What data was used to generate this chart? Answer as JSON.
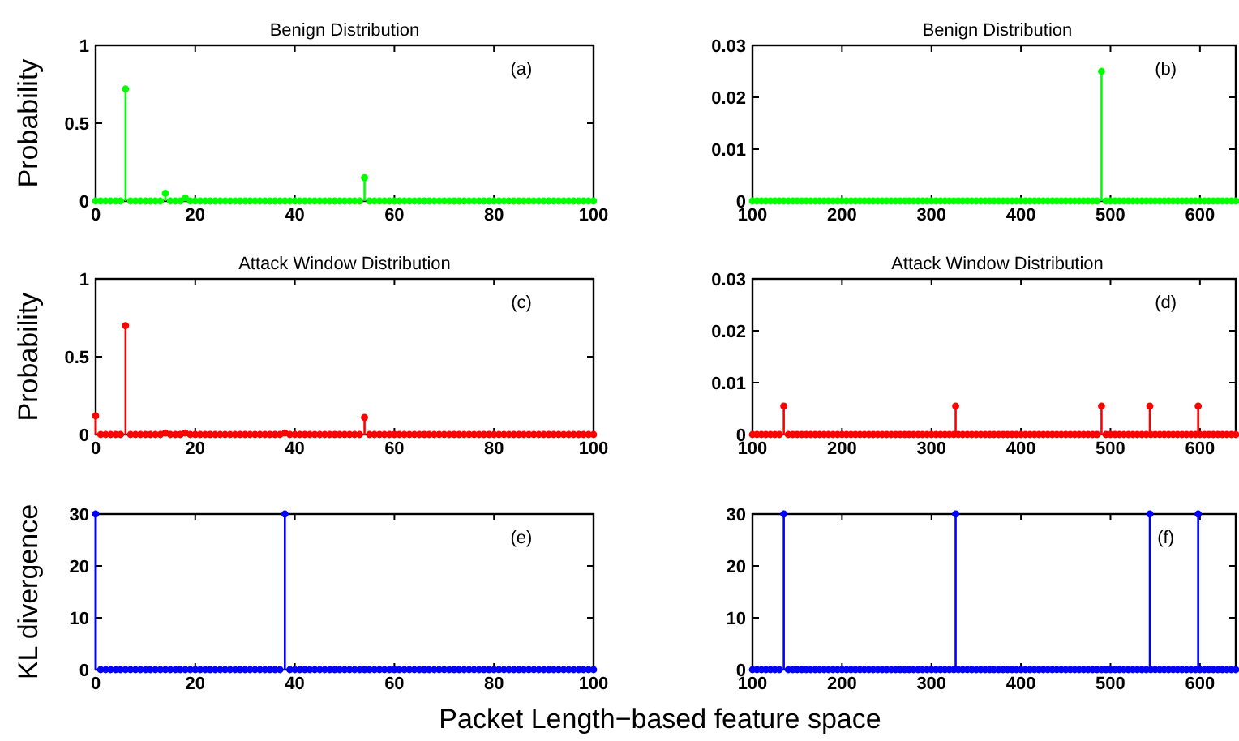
{
  "chart_data": [
    {
      "type": "lollipop",
      "title": "Benign Distribution",
      "ylabel": "Probability",
      "annotations": [
        "(a)"
      ],
      "marker": "circle",
      "xlim": [
        0,
        100
      ],
      "xticks": [
        0,
        20,
        40,
        60,
        80,
        100
      ],
      "ylim": [
        0,
        1
      ],
      "yticks": [
        0,
        0.5,
        1
      ],
      "series": [
        {
          "color": "#00ff00",
          "x": [
            0,
            1,
            2,
            3,
            4,
            5,
            6,
            7,
            8,
            9,
            10,
            11,
            12,
            13,
            14,
            15,
            16,
            17,
            18,
            19,
            20,
            21,
            22,
            23,
            24,
            25,
            26,
            27,
            28,
            29,
            30,
            31,
            32,
            33,
            34,
            35,
            36,
            37,
            38,
            39,
            40,
            41,
            42,
            43,
            44,
            45,
            46,
            47,
            48,
            49,
            50,
            51,
            52,
            53,
            54,
            55,
            56,
            57,
            58,
            59,
            60,
            61,
            62,
            63,
            64,
            65,
            66,
            67,
            68,
            69,
            70,
            71,
            72,
            73,
            74,
            75,
            76,
            77,
            78,
            79,
            80,
            81,
            82,
            83,
            84,
            85,
            86,
            87,
            88,
            89,
            90,
            91,
            92,
            93,
            94,
            95,
            96,
            97,
            98,
            99,
            100
          ],
          "values": [
            0,
            0,
            0,
            0,
            0,
            0,
            0.72,
            0,
            0,
            0,
            0,
            0,
            0,
            0,
            0.05,
            0,
            0,
            0,
            0.02,
            0,
            0,
            0,
            0,
            0,
            0,
            0,
            0,
            0,
            0,
            0,
            0,
            0,
            0,
            0,
            0,
            0,
            0,
            0,
            0,
            0,
            0,
            0,
            0,
            0,
            0,
            0,
            0,
            0,
            0,
            0,
            0,
            0,
            0,
            0,
            0.15,
            0,
            0,
            0,
            0,
            0,
            0,
            0,
            0,
            0,
            0,
            0,
            0,
            0,
            0,
            0,
            0,
            0,
            0,
            0,
            0,
            0,
            0,
            0,
            0,
            0,
            0,
            0,
            0,
            0,
            0,
            0,
            0,
            0,
            0,
            0,
            0,
            0,
            0,
            0,
            0,
            0,
            0,
            0,
            0,
            0,
            0
          ]
        }
      ]
    },
    {
      "type": "lollipop",
      "title": "Benign Distribution",
      "annotations": [
        "(b)"
      ],
      "marker": "circle",
      "xlim": [
        100,
        640
      ],
      "xticks": [
        100,
        200,
        300,
        400,
        500,
        600
      ],
      "ylim": [
        0,
        0.03
      ],
      "yticks": [
        0,
        0.01,
        0.02,
        0.03
      ],
      "series": [
        {
          "color": "#00ff00",
          "x": [
            490
          ],
          "values": [
            0.025
          ]
        },
        {
          "color": "#00ff00",
          "x": [
            100,
            105,
            110,
            115,
            120,
            125,
            130,
            135,
            140,
            145,
            150,
            155,
            160,
            165,
            170,
            175,
            180,
            185,
            190,
            195,
            200,
            205,
            210,
            215,
            220,
            225,
            230,
            235,
            240,
            245,
            250,
            255,
            260,
            265,
            270,
            275,
            280,
            285,
            290,
            295,
            300,
            305,
            310,
            315,
            320,
            325,
            330,
            335,
            340,
            345,
            350,
            355,
            360,
            365,
            370,
            375,
            380,
            385,
            390,
            395,
            400,
            405,
            410,
            415,
            420,
            425,
            430,
            435,
            440,
            445,
            450,
            455,
            460,
            465,
            470,
            475,
            480,
            485,
            495,
            500,
            505,
            510,
            515,
            520,
            525,
            530,
            535,
            540,
            545,
            550,
            555,
            560,
            565,
            570,
            575,
            580,
            585,
            590,
            595,
            600,
            605,
            610,
            615,
            620,
            625,
            630,
            635,
            640
          ],
          "values": [
            0,
            0,
            0,
            0,
            0,
            0,
            0,
            0,
            0,
            0,
            0,
            0,
            0,
            0,
            0,
            0,
            0,
            0,
            0,
            0,
            0,
            0,
            0,
            0,
            0,
            0,
            0,
            0,
            0,
            0,
            0,
            0,
            0,
            0,
            0,
            0,
            0,
            0,
            0,
            0,
            0,
            0,
            0,
            0,
            0,
            0,
            0,
            0,
            0,
            0,
            0,
            0,
            0,
            0,
            0,
            0,
            0,
            0,
            0,
            0,
            0,
            0,
            0,
            0,
            0,
            0,
            0,
            0,
            0,
            0,
            0,
            0,
            0,
            0,
            0,
            0,
            0,
            0,
            0,
            0,
            0,
            0,
            0,
            0,
            0,
            0,
            0,
            0,
            0,
            0,
            0,
            0,
            0,
            0,
            0,
            0,
            0,
            0,
            0,
            0,
            0,
            0,
            0,
            0,
            0,
            0,
            0,
            0
          ]
        }
      ]
    },
    {
      "type": "lollipop",
      "title": "Attack Window Distribution",
      "ylabel": "Probability",
      "annotations": [
        "(c)"
      ],
      "marker": "circle",
      "xlim": [
        0,
        100
      ],
      "xticks": [
        0,
        20,
        40,
        60,
        80,
        100
      ],
      "ylim": [
        0,
        1
      ],
      "yticks": [
        0,
        0.5,
        1
      ],
      "series": [
        {
          "color": "#ff0000",
          "x": [
            0,
            1,
            2,
            3,
            4,
            5,
            6,
            7,
            8,
            9,
            10,
            11,
            12,
            13,
            14,
            15,
            16,
            17,
            18,
            19,
            20,
            21,
            22,
            23,
            24,
            25,
            26,
            27,
            28,
            29,
            30,
            31,
            32,
            33,
            34,
            35,
            36,
            37,
            38,
            39,
            40,
            41,
            42,
            43,
            44,
            45,
            46,
            47,
            48,
            49,
            50,
            51,
            52,
            53,
            54,
            55,
            56,
            57,
            58,
            59,
            60,
            61,
            62,
            63,
            64,
            65,
            66,
            67,
            68,
            69,
            70,
            71,
            72,
            73,
            74,
            75,
            76,
            77,
            78,
            79,
            80,
            81,
            82,
            83,
            84,
            85,
            86,
            87,
            88,
            89,
            90,
            91,
            92,
            93,
            94,
            95,
            96,
            97,
            98,
            99,
            100
          ],
          "values": [
            0.12,
            0,
            0,
            0,
            0,
            0,
            0.7,
            0,
            0,
            0,
            0,
            0,
            0,
            0,
            0.01,
            0,
            0,
            0,
            0.01,
            0,
            0,
            0,
            0,
            0,
            0,
            0,
            0,
            0,
            0,
            0,
            0,
            0,
            0,
            0,
            0,
            0,
            0,
            0,
            0.01,
            0,
            0,
            0,
            0,
            0,
            0,
            0,
            0,
            0,
            0,
            0,
            0,
            0,
            0,
            0,
            0.11,
            0,
            0,
            0,
            0,
            0,
            0,
            0,
            0,
            0,
            0,
            0,
            0,
            0,
            0,
            0,
            0,
            0,
            0,
            0,
            0,
            0,
            0,
            0,
            0,
            0,
            0,
            0,
            0,
            0,
            0,
            0,
            0,
            0,
            0,
            0,
            0,
            0,
            0,
            0,
            0,
            0,
            0,
            0,
            0,
            0,
            0
          ]
        }
      ]
    },
    {
      "type": "lollipop",
      "title": "Attack Window Distribution",
      "annotations": [
        "(d)"
      ],
      "marker": "circle",
      "xlim": [
        100,
        640
      ],
      "xticks": [
        100,
        200,
        300,
        400,
        500,
        600
      ],
      "ylim": [
        0,
        0.03
      ],
      "yticks": [
        0,
        0.01,
        0.02,
        0.03
      ],
      "series": [
        {
          "color": "#ff0000",
          "x": [
            135,
            327,
            490,
            544,
            598
          ],
          "values": [
            0.0055,
            0.0055,
            0.0055,
            0.0055,
            0.0055
          ]
        },
        {
          "color": "#ff0000",
          "x": [
            100,
            105,
            110,
            115,
            120,
            125,
            130,
            140,
            145,
            150,
            155,
            160,
            165,
            170,
            175,
            180,
            185,
            190,
            195,
            200,
            205,
            210,
            215,
            220,
            225,
            230,
            235,
            240,
            245,
            250,
            255,
            260,
            265,
            270,
            275,
            280,
            285,
            290,
            295,
            300,
            305,
            310,
            315,
            320,
            325,
            330,
            335,
            340,
            345,
            350,
            355,
            360,
            365,
            370,
            375,
            380,
            385,
            390,
            395,
            400,
            405,
            410,
            415,
            420,
            425,
            430,
            435,
            440,
            445,
            450,
            455,
            460,
            465,
            470,
            475,
            480,
            485,
            495,
            500,
            505,
            510,
            515,
            520,
            525,
            530,
            535,
            540,
            545,
            550,
            555,
            560,
            565,
            570,
            575,
            580,
            585,
            590,
            595,
            600,
            605,
            610,
            615,
            620,
            625,
            630,
            635,
            640
          ],
          "values": [
            0,
            0,
            0,
            0,
            0,
            0,
            0,
            0,
            0,
            0,
            0,
            0,
            0,
            0,
            0,
            0,
            0,
            0,
            0,
            0,
            0,
            0,
            0,
            0,
            0,
            0,
            0,
            0,
            0,
            0,
            0,
            0,
            0,
            0,
            0,
            0,
            0,
            0,
            0,
            0,
            0,
            0,
            0,
            0,
            0,
            0,
            0,
            0,
            0,
            0,
            0,
            0,
            0,
            0,
            0,
            0,
            0,
            0,
            0,
            0,
            0,
            0,
            0,
            0,
            0,
            0,
            0,
            0,
            0,
            0,
            0,
            0,
            0,
            0,
            0,
            0,
            0,
            0,
            0,
            0,
            0,
            0,
            0,
            0,
            0,
            0,
            0,
            0,
            0,
            0,
            0,
            0,
            0,
            0,
            0,
            0,
            0,
            0,
            0,
            0,
            0,
            0,
            0,
            0,
            0,
            0,
            0
          ]
        }
      ]
    },
    {
      "type": "lollipop",
      "ylabel": "KL divergence",
      "xlabel": "Packet Length−based feature space",
      "annotations": [
        "(e)"
      ],
      "marker": "circle",
      "xlim": [
        0,
        100
      ],
      "xticks": [
        0,
        20,
        40,
        60,
        80,
        100
      ],
      "ylim": [
        0,
        30
      ],
      "yticks": [
        0,
        10,
        20,
        30
      ],
      "series": [
        {
          "color": "#0000ff",
          "x": [
            0,
            1,
            2,
            3,
            4,
            5,
            6,
            7,
            8,
            9,
            10,
            11,
            12,
            13,
            14,
            15,
            16,
            17,
            18,
            19,
            20,
            21,
            22,
            23,
            24,
            25,
            26,
            27,
            28,
            29,
            30,
            31,
            32,
            33,
            34,
            35,
            36,
            37,
            38,
            39,
            40,
            41,
            42,
            43,
            44,
            45,
            46,
            47,
            48,
            49,
            50,
            51,
            52,
            53,
            54,
            55,
            56,
            57,
            58,
            59,
            60,
            61,
            62,
            63,
            64,
            65,
            66,
            67,
            68,
            69,
            70,
            71,
            72,
            73,
            74,
            75,
            76,
            77,
            78,
            79,
            80,
            81,
            82,
            83,
            84,
            85,
            86,
            87,
            88,
            89,
            90,
            91,
            92,
            93,
            94,
            95,
            96,
            97,
            98,
            99,
            100
          ],
          "values": [
            30,
            0,
            0,
            0,
            0,
            0,
            0,
            0,
            0,
            0,
            0,
            0,
            0,
            0,
            0,
            0,
            0,
            0,
            0,
            0,
            0,
            0,
            0,
            0,
            0,
            0,
            0,
            0,
            0,
            0,
            0,
            0,
            0,
            0,
            0,
            0,
            0,
            0,
            30,
            0,
            0,
            0,
            0,
            0,
            0,
            0,
            0,
            0,
            0,
            0,
            0,
            0,
            0,
            0,
            0,
            0,
            0,
            0,
            0,
            0,
            0,
            0,
            0,
            0,
            0,
            0,
            0,
            0,
            0,
            0,
            0,
            0,
            0,
            0,
            0,
            0,
            0,
            0,
            0,
            0,
            0,
            0,
            0,
            0,
            0,
            0,
            0,
            0,
            0,
            0,
            0,
            0,
            0,
            0,
            0,
            0,
            0,
            0,
            0,
            0,
            0
          ]
        }
      ]
    },
    {
      "type": "lollipop",
      "annotations": [
        "(f)"
      ],
      "marker": "circle",
      "xlim": [
        100,
        640
      ],
      "xticks": [
        100,
        200,
        300,
        400,
        500,
        600
      ],
      "ylim": [
        0,
        30
      ],
      "yticks": [
        0,
        10,
        20,
        30
      ],
      "series": [
        {
          "color": "#0000ff",
          "x": [
            135,
            327,
            544,
            598
          ],
          "values": [
            30,
            30,
            30,
            30
          ]
        },
        {
          "color": "#0000ff",
          "x": [
            100,
            105,
            110,
            115,
            120,
            125,
            130,
            140,
            145,
            150,
            155,
            160,
            165,
            170,
            175,
            180,
            185,
            190,
            195,
            200,
            205,
            210,
            215,
            220,
            225,
            230,
            235,
            240,
            245,
            250,
            255,
            260,
            265,
            270,
            275,
            280,
            285,
            290,
            295,
            300,
            305,
            310,
            315,
            320,
            325,
            330,
            335,
            340,
            345,
            350,
            355,
            360,
            365,
            370,
            375,
            380,
            385,
            390,
            395,
            400,
            405,
            410,
            415,
            420,
            425,
            430,
            435,
            440,
            445,
            450,
            455,
            460,
            465,
            470,
            475,
            480,
            485,
            490,
            495,
            500,
            505,
            510,
            515,
            520,
            525,
            530,
            535,
            540,
            545,
            550,
            555,
            560,
            565,
            570,
            575,
            580,
            585,
            590,
            595,
            600,
            605,
            610,
            615,
            620,
            625,
            630,
            635,
            640
          ],
          "values": [
            0,
            0,
            0,
            0,
            0,
            0,
            0,
            0,
            0,
            0,
            0,
            0,
            0,
            0,
            0,
            0,
            0,
            0,
            0,
            0,
            0,
            0,
            0,
            0,
            0,
            0,
            0,
            0,
            0,
            0,
            0,
            0,
            0,
            0,
            0,
            0,
            0,
            0,
            0,
            0,
            0,
            0,
            0,
            0,
            0,
            0,
            0,
            0,
            0,
            0,
            0,
            0,
            0,
            0,
            0,
            0,
            0,
            0,
            0,
            0,
            0,
            0,
            0,
            0,
            0,
            0,
            0,
            0,
            0,
            0,
            0,
            0,
            0,
            0,
            0,
            0,
            0,
            0,
            0,
            0,
            0,
            0,
            0,
            0,
            0,
            0,
            0,
            0,
            0,
            0,
            0,
            0,
            0,
            0,
            0,
            0,
            0,
            0,
            0,
            0,
            0,
            0,
            0,
            0,
            0,
            0,
            0,
            0
          ]
        }
      ]
    }
  ]
}
